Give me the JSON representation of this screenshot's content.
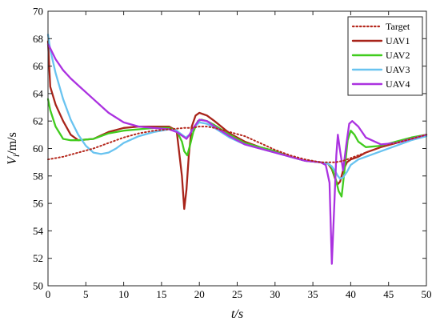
{
  "chart_data": {
    "type": "line",
    "title": "",
    "xlabel": "t/s",
    "ylabel": "V_i/m/s",
    "xlim": [
      0,
      50
    ],
    "ylim": [
      50,
      70
    ],
    "xticks": [
      0,
      5,
      10,
      15,
      20,
      25,
      30,
      35,
      40,
      45,
      50
    ],
    "yticks": [
      50,
      52,
      54,
      56,
      58,
      60,
      62,
      64,
      66,
      68,
      70
    ],
    "grid": false,
    "legend_position": "top-right",
    "series": [
      {
        "name": "Target",
        "color": "#b5281d",
        "dash": "dotted",
        "x": [
          0,
          2,
          4,
          6,
          8,
          10,
          12,
          14,
          16,
          18,
          19,
          20,
          21,
          22,
          24,
          26,
          28,
          30,
          32,
          34,
          36,
          38,
          39,
          40,
          42,
          44,
          46,
          48,
          50
        ],
        "y": [
          59.2,
          59.4,
          59.7,
          60.0,
          60.4,
          60.8,
          61.1,
          61.3,
          61.4,
          61.5,
          61.5,
          61.6,
          61.6,
          61.5,
          61.2,
          60.9,
          60.4,
          59.9,
          59.5,
          59.2,
          59.0,
          59.0,
          59.1,
          59.3,
          59.7,
          60.1,
          60.4,
          60.7,
          61.0
        ]
      },
      {
        "name": "UAV1",
        "color": "#a8241a",
        "dash": "solid",
        "x": [
          0,
          0.3,
          1,
          2,
          3,
          4,
          6,
          8,
          10,
          12,
          14,
          16,
          17,
          17.7,
          18,
          18.3,
          18.6,
          19,
          19.5,
          20,
          21,
          22,
          24,
          26,
          28,
          30,
          32,
          34,
          36,
          37,
          37.5,
          38,
          38.3,
          38.6,
          39,
          39.5,
          40,
          41,
          42,
          44,
          46,
          48,
          50
        ],
        "y": [
          67.8,
          64.5,
          63.2,
          62.0,
          61.0,
          60.6,
          60.7,
          61.2,
          61.5,
          61.6,
          61.6,
          61.6,
          61.3,
          58.0,
          55.6,
          57.0,
          59.5,
          61.6,
          62.4,
          62.6,
          62.4,
          62.0,
          61.1,
          60.5,
          60.1,
          59.8,
          59.4,
          59.1,
          59.0,
          58.9,
          58.5,
          57.7,
          57.4,
          57.6,
          58.4,
          59.0,
          59.2,
          59.4,
          59.7,
          60.1,
          60.4,
          60.7,
          61.0
        ]
      },
      {
        "name": "UAV2",
        "color": "#41cc1e",
        "dash": "solid",
        "x": [
          0,
          0.3,
          1,
          2,
          3,
          4,
          6,
          8,
          10,
          12,
          14,
          16,
          17,
          17.7,
          18,
          18.4,
          18.8,
          19.2,
          19.8,
          20.3,
          21,
          22,
          24,
          26,
          28,
          30,
          32,
          34,
          36,
          37,
          37.5,
          38,
          38.4,
          38.8,
          39.2,
          39.6,
          40,
          40.5,
          41,
          42,
          44,
          46,
          48,
          50
        ],
        "y": [
          63.6,
          62.8,
          61.6,
          60.7,
          60.6,
          60.6,
          60.7,
          61.1,
          61.3,
          61.4,
          61.5,
          61.5,
          61.3,
          60.5,
          59.8,
          59.5,
          60.3,
          61.2,
          62.0,
          62.1,
          62.0,
          61.7,
          61.0,
          60.4,
          60.1,
          59.8,
          59.4,
          59.1,
          59.0,
          58.9,
          58.6,
          57.8,
          56.9,
          56.5,
          58.5,
          60.6,
          61.3,
          61.0,
          60.5,
          60.1,
          60.2,
          60.5,
          60.8,
          61.0
        ]
      },
      {
        "name": "UAV3",
        "color": "#69c3f0",
        "dash": "solid",
        "x": [
          0,
          0.3,
          1,
          2,
          3,
          4,
          5,
          6,
          7,
          8,
          9,
          10,
          12,
          14,
          16,
          17,
          17.7,
          18.2,
          18.7,
          19.2,
          20,
          21,
          22,
          24,
          26,
          28,
          30,
          32,
          34,
          36,
          37,
          37.5,
          38,
          38.3,
          38.6,
          39,
          39.5,
          40,
          41,
          42,
          44,
          46,
          48,
          50
        ],
        "y": [
          68.3,
          67.2,
          65.5,
          63.6,
          62.1,
          61.0,
          60.2,
          59.7,
          59.6,
          59.7,
          60.0,
          60.4,
          60.9,
          61.2,
          61.4,
          61.3,
          61.0,
          60.8,
          61.0,
          61.5,
          61.9,
          61.8,
          61.5,
          60.8,
          60.3,
          60.0,
          59.7,
          59.4,
          59.1,
          59.0,
          58.9,
          58.7,
          58.3,
          58.0,
          57.8,
          57.9,
          58.3,
          58.8,
          59.2,
          59.4,
          59.8,
          60.2,
          60.6,
          60.9
        ]
      },
      {
        "name": "UAV4",
        "color": "#ab32e0",
        "dash": "solid",
        "x": [
          0,
          0.3,
          1,
          2,
          3,
          4,
          6,
          8,
          10,
          12,
          14,
          16,
          17,
          17.8,
          18.3,
          18.7,
          19.2,
          20,
          21,
          22,
          24,
          26,
          28,
          30,
          32,
          34,
          36,
          36.7,
          37.2,
          37.5,
          37.8,
          38.1,
          38.3,
          38.6,
          39,
          39.4,
          39.8,
          40.2,
          41,
          42,
          44,
          46,
          48,
          50
        ],
        "y": [
          67.6,
          67.3,
          66.5,
          65.7,
          65.1,
          64.6,
          63.6,
          62.6,
          61.9,
          61.6,
          61.5,
          61.4,
          61.2,
          60.9,
          60.7,
          61.0,
          61.5,
          62.1,
          62.0,
          61.6,
          60.9,
          60.3,
          60.0,
          59.7,
          59.4,
          59.1,
          59.0,
          58.8,
          57.5,
          51.6,
          55.5,
          59.5,
          61.0,
          59.8,
          58.4,
          60.2,
          61.8,
          62.0,
          61.6,
          60.8,
          60.3,
          60.4,
          60.7,
          61.0
        ]
      }
    ]
  }
}
